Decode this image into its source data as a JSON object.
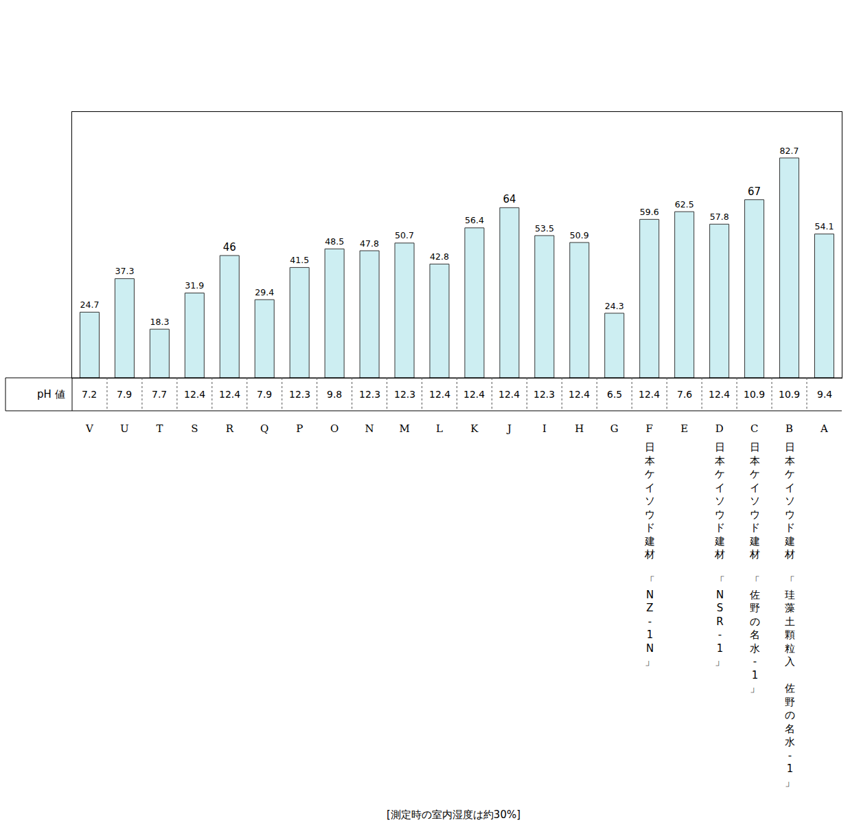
{
  "chart_data": {
    "type": "bar",
    "categories": [
      "V",
      "U",
      "T",
      "S",
      "R",
      "Q",
      "P",
      "O",
      "N",
      "M",
      "L",
      "K",
      "J",
      "I",
      "H",
      "G",
      "F",
      "E",
      "D",
      "C",
      "B",
      "A"
    ],
    "values": [
      24.7,
      37.3,
      18.3,
      31.9,
      46,
      29.4,
      41.5,
      48.5,
      47.8,
      50.7,
      42.8,
      56.4,
      64,
      53.5,
      50.9,
      24.3,
      59.6,
      62.5,
      57.8,
      67,
      82.7,
      54.1
    ],
    "color": "#cdeef2",
    "ylim": [
      0,
      100
    ],
    "yticks": [],
    "grid": false,
    "data_labels": true,
    "tick_labels": "x",
    "row_label": "pH 値",
    "ph_values": [
      7.2,
      7.9,
      7.7,
      12.4,
      12.4,
      7.9,
      12.3,
      9.8,
      12.3,
      12.3,
      12.4,
      12.4,
      12.4,
      12.3,
      12.4,
      6.5,
      12.4,
      7.6,
      12.4,
      10.9,
      10.9,
      9.4
    ],
    "product_labels": [
      {
        "category": "F",
        "text": "日本ケイソウド建材 「NZ-1N」"
      },
      {
        "category": "D",
        "text": "日本ケイソウド建材 「NSR-1」"
      },
      {
        "category": "C",
        "text": "日本ケイソウド建材 「佐野の名水-1」"
      },
      {
        "category": "B",
        "text": "日本ケイソウド建材 「珪藻土顆粒入 佐野の名水-1」"
      }
    ],
    "note": "[測定時の室内湿度は約30%]"
  }
}
